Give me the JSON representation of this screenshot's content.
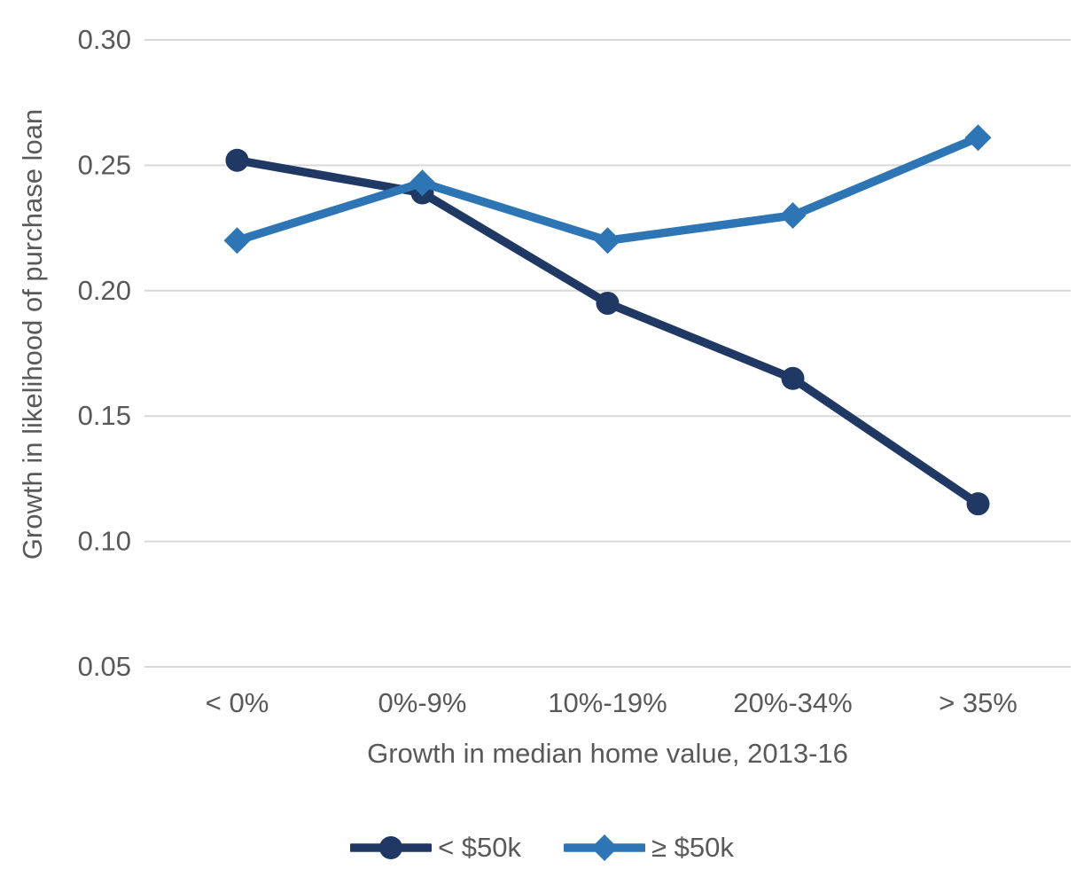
{
  "chart_data": {
    "type": "line",
    "title": "",
    "xlabel": "Growth in median home value, 2013-16",
    "ylabel": "Growth in likelihood of purchase loan",
    "categories": [
      "< 0%",
      "0%-9%",
      "10%-19%",
      "20%-34%",
      "> 35%"
    ],
    "series": [
      {
        "name": "< $50k",
        "marker": "circle",
        "color": "#1f3864",
        "values": [
          0.252,
          0.239,
          0.195,
          0.165,
          0.115
        ]
      },
      {
        "name": "≥ $50k",
        "marker": "diamond",
        "color": "#2e75b6",
        "values": [
          0.22,
          0.243,
          0.22,
          0.23,
          0.261
        ]
      }
    ],
    "ylim": [
      0.05,
      0.3
    ],
    "yticks": [
      0.3,
      0.25,
      0.2,
      0.15,
      0.1,
      0.05
    ],
    "ytick_labels": [
      "0.30",
      "0.25",
      "0.20",
      "0.15",
      "0.10",
      "0.05"
    ],
    "grid": true,
    "legend_position": "bottom",
    "colors": {
      "grid": "#d9d9d9",
      "text": "#595959",
      "background": "#ffffff"
    }
  }
}
